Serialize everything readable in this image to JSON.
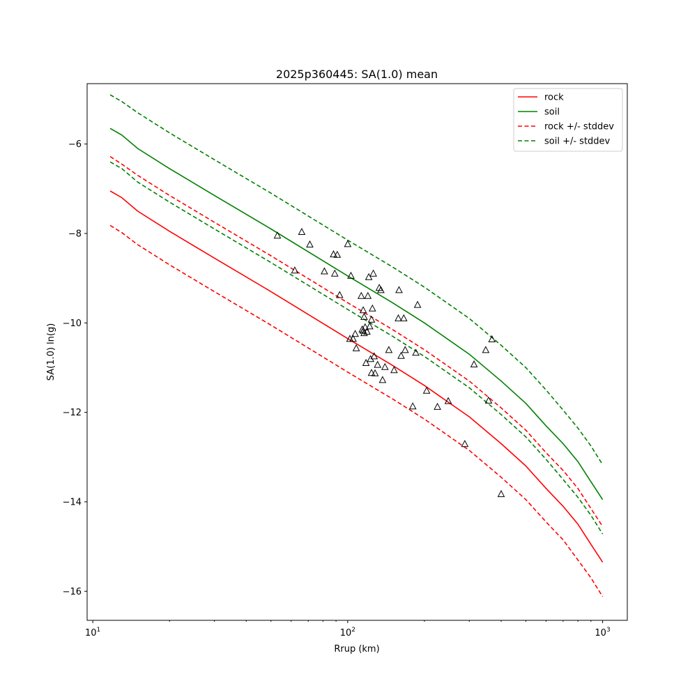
{
  "chart_data": {
    "type": "line",
    "title": "2025p360445: SA(1.0) mean",
    "xlabel": "Rrup (km)",
    "ylabel": "SA(1.0) ln(g)",
    "xscale": "log",
    "xlim": [
      9.5,
      1250
    ],
    "ylim": [
      -16.65,
      -4.65
    ],
    "xticks": [
      {
        "value": 10,
        "label": "10",
        "sup": "1"
      },
      {
        "value": 100,
        "label": "10",
        "sup": "2"
      },
      {
        "value": 1000,
        "label": "10",
        "sup": "3"
      }
    ],
    "yticks": [
      {
        "value": -6,
        "label": "−6"
      },
      {
        "value": -8,
        "label": "−8"
      },
      {
        "value": -10,
        "label": "−10"
      },
      {
        "value": -12,
        "label": "−12"
      },
      {
        "value": -14,
        "label": "−14"
      },
      {
        "value": -16,
        "label": "−16"
      }
    ],
    "legend": {
      "position": "upper-right",
      "entries": [
        {
          "label": "rock",
          "color": "#ff0000",
          "dash": false
        },
        {
          "label": "soil",
          "color": "#008000",
          "dash": false
        },
        {
          "label": "rock +/- stddev",
          "color": "#ff0000",
          "dash": true
        },
        {
          "label": "soil +/- stddev",
          "color": "#008000",
          "dash": true
        }
      ]
    },
    "series": [
      {
        "name": "rock",
        "color": "#ff0000",
        "dash": false,
        "x": [
          11.7,
          13,
          15,
          20,
          30,
          50,
          100,
          150,
          200,
          300,
          400,
          500,
          600,
          700,
          800,
          900,
          1000
        ],
        "y": [
          -7.05,
          -7.2,
          -7.5,
          -7.95,
          -8.55,
          -9.3,
          -10.35,
          -10.95,
          -11.4,
          -12.1,
          -12.7,
          -13.2,
          -13.7,
          -14.1,
          -14.5,
          -14.95,
          -15.35
        ]
      },
      {
        "name": "soil",
        "color": "#008000",
        "dash": false,
        "x": [
          11.7,
          13,
          15,
          20,
          30,
          50,
          100,
          150,
          200,
          300,
          400,
          500,
          600,
          700,
          800,
          900,
          1000
        ],
        "y": [
          -5.65,
          -5.8,
          -6.1,
          -6.55,
          -7.15,
          -7.9,
          -8.95,
          -9.55,
          -10.0,
          -10.7,
          -11.3,
          -11.8,
          -12.3,
          -12.7,
          -13.1,
          -13.55,
          -13.95
        ]
      },
      {
        "name": "rock +/- stddev",
        "color": "#ff0000",
        "dash": true,
        "x": [
          11.7,
          13,
          15,
          20,
          30,
          50,
          100,
          150,
          200,
          300,
          400,
          500,
          600,
          700,
          800,
          900,
          1000
        ],
        "y": [
          -6.28,
          -6.45,
          -6.7,
          -7.15,
          -7.75,
          -8.5,
          -9.55,
          -10.15,
          -10.6,
          -11.3,
          -11.9,
          -12.4,
          -12.9,
          -13.3,
          -13.7,
          -14.15,
          -14.55
        ]
      },
      {
        "name": "",
        "color": "#ff0000",
        "dash": true,
        "x": [
          11.7,
          13,
          15,
          20,
          30,
          50,
          100,
          150,
          200,
          300,
          400,
          500,
          600,
          700,
          800,
          900,
          1000
        ],
        "y": [
          -7.82,
          -7.98,
          -8.25,
          -8.7,
          -9.3,
          -10.05,
          -11.1,
          -11.7,
          -12.15,
          -12.85,
          -13.45,
          -13.95,
          -14.45,
          -14.85,
          -15.3,
          -15.7,
          -16.12
        ]
      },
      {
        "name": "soil +/- stddev",
        "color": "#008000",
        "dash": true,
        "x": [
          11.7,
          13,
          15,
          20,
          30,
          50,
          100,
          150,
          200,
          300,
          400,
          500,
          600,
          700,
          800,
          900,
          1000
        ],
        "y": [
          -4.9,
          -5.05,
          -5.3,
          -5.75,
          -6.35,
          -7.1,
          -8.15,
          -8.75,
          -9.2,
          -9.9,
          -10.5,
          -11.0,
          -11.5,
          -11.95,
          -12.35,
          -12.75,
          -13.17
        ]
      },
      {
        "name": "",
        "color": "#008000",
        "dash": true,
        "x": [
          11.7,
          13,
          15,
          20,
          30,
          50,
          100,
          150,
          200,
          300,
          400,
          500,
          600,
          700,
          800,
          900,
          1000
        ],
        "y": [
          -6.4,
          -6.55,
          -6.85,
          -7.3,
          -7.9,
          -8.65,
          -9.7,
          -10.3,
          -10.75,
          -11.45,
          -12.05,
          -12.55,
          -13.05,
          -13.5,
          -13.9,
          -14.3,
          -14.72
        ]
      }
    ],
    "observations": {
      "marker": "triangle",
      "x": [
        53,
        62,
        66,
        71,
        81,
        88,
        89,
        91,
        93,
        100,
        102,
        103,
        105,
        107,
        108,
        113,
        114,
        115,
        115,
        116,
        116,
        117,
        118,
        119,
        120,
        121,
        122,
        123,
        124,
        124,
        125,
        126,
        127,
        128,
        131,
        133,
        135,
        137,
        140,
        145,
        152,
        158,
        159,
        162,
        166,
        168,
        180,
        185,
        188,
        204,
        225,
        248,
        288,
        313,
        348,
        357,
        368,
        400
      ],
      "y": [
        -8.05,
        -8.83,
        -7.97,
        -8.25,
        -8.85,
        -8.47,
        -8.9,
        -8.48,
        -9.38,
        -8.24,
        -10.36,
        -8.95,
        -10.36,
        -10.25,
        -10.57,
        -9.4,
        -10.15,
        -10.18,
        -9.72,
        -10.23,
        -9.87,
        -10.1,
        -10.9,
        -10.2,
        -9.4,
        -8.98,
        -10.08,
        -10.81,
        -11.12,
        -9.93,
        -9.68,
        -8.9,
        -10.75,
        -11.13,
        -10.94,
        -9.22,
        -9.27,
        -11.28,
        -10.99,
        -10.61,
        -11.06,
        -9.9,
        -9.27,
        -10.74,
        -9.9,
        -10.61,
        -11.87,
        -10.67,
        -9.6,
        -11.52,
        -11.88,
        -11.75,
        -12.71,
        -10.93,
        -10.61,
        -11.74,
        -10.37,
        -13.83
      ]
    }
  }
}
